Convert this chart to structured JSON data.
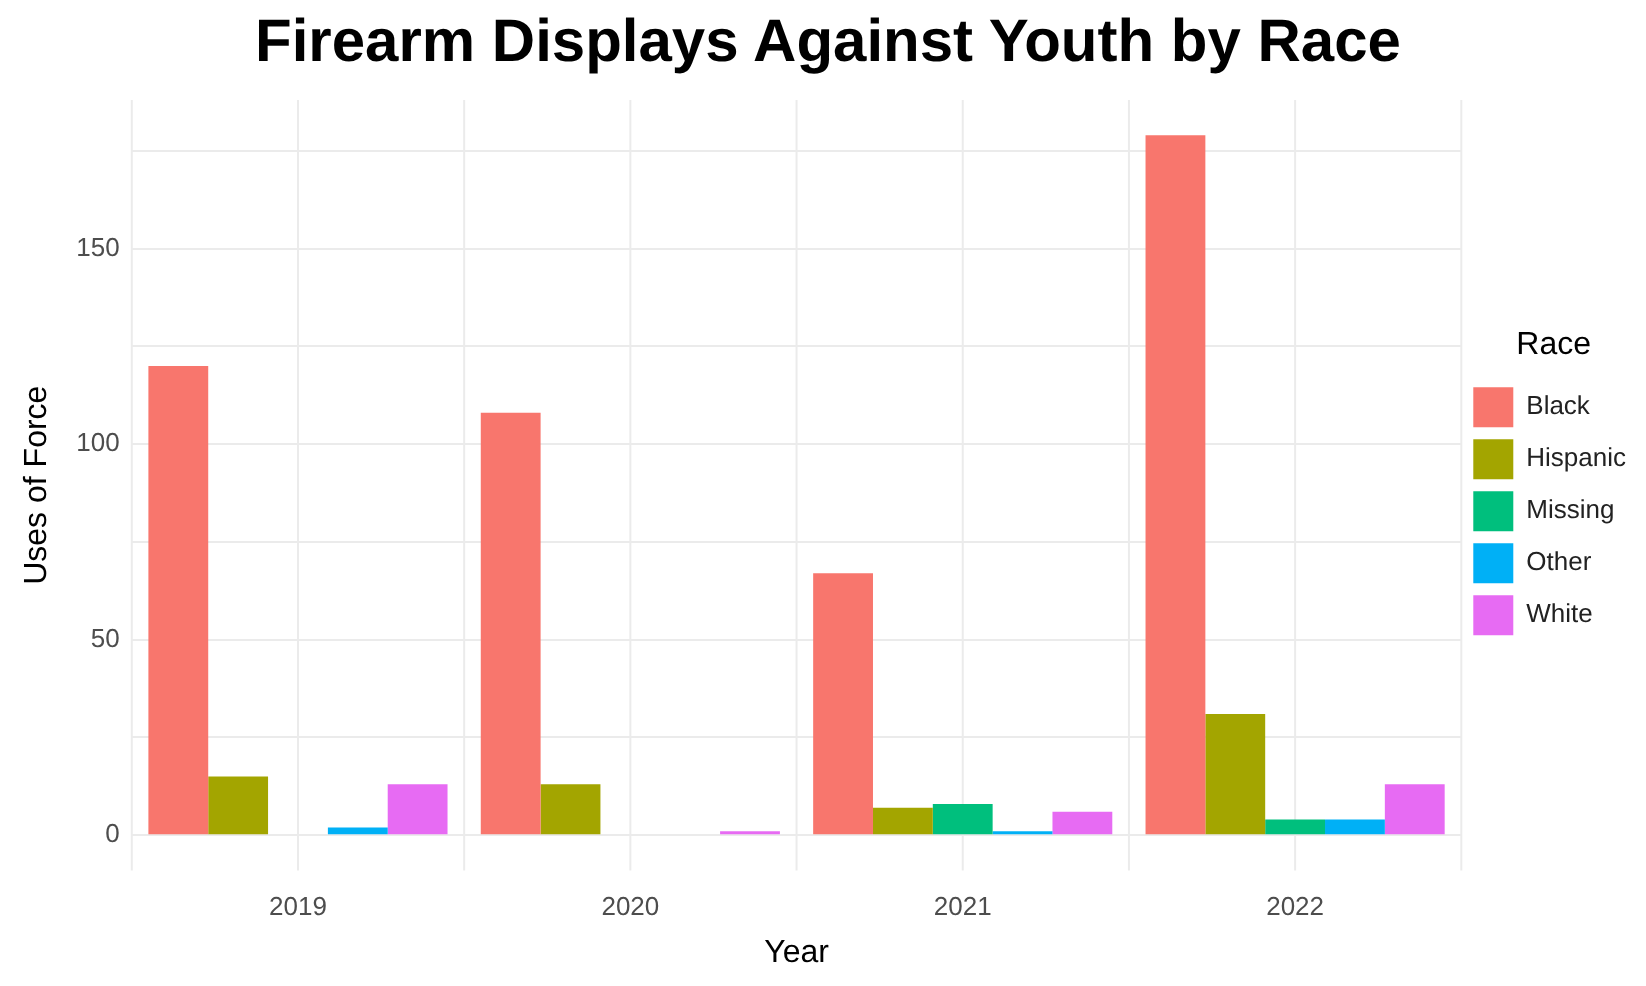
{
  "chart_data": {
    "type": "bar",
    "title": "Firearm Displays Against Youth by Race",
    "xlabel": "Year",
    "ylabel": "Uses of Force",
    "legend_title": "Race",
    "categories": [
      "2019",
      "2020",
      "2021",
      "2022"
    ],
    "series": [
      {
        "name": "Black",
        "color": "#f8766d",
        "values": [
          120,
          108,
          67,
          179
        ]
      },
      {
        "name": "Hispanic",
        "color": "#a3a500",
        "values": [
          15,
          13,
          7,
          31
        ]
      },
      {
        "name": "Missing",
        "color": "#00bf7d",
        "values": [
          null,
          null,
          8,
          4
        ]
      },
      {
        "name": "Other",
        "color": "#00b0f6",
        "values": [
          2,
          null,
          1,
          4
        ]
      },
      {
        "name": "White",
        "color": "#e76bf3",
        "values": [
          13,
          1,
          6,
          13
        ]
      }
    ],
    "ylim": [
      -9,
      188
    ],
    "yticks": [
      0,
      {
        "value": 25,
        "label": null
      },
      50,
      {
        "value": 75,
        "label": null
      },
      100,
      {
        "value": 125,
        "label": null
      },
      150,
      {
        "value": 175,
        "label": null
      }
    ],
    "grid": true,
    "legend": "right"
  }
}
